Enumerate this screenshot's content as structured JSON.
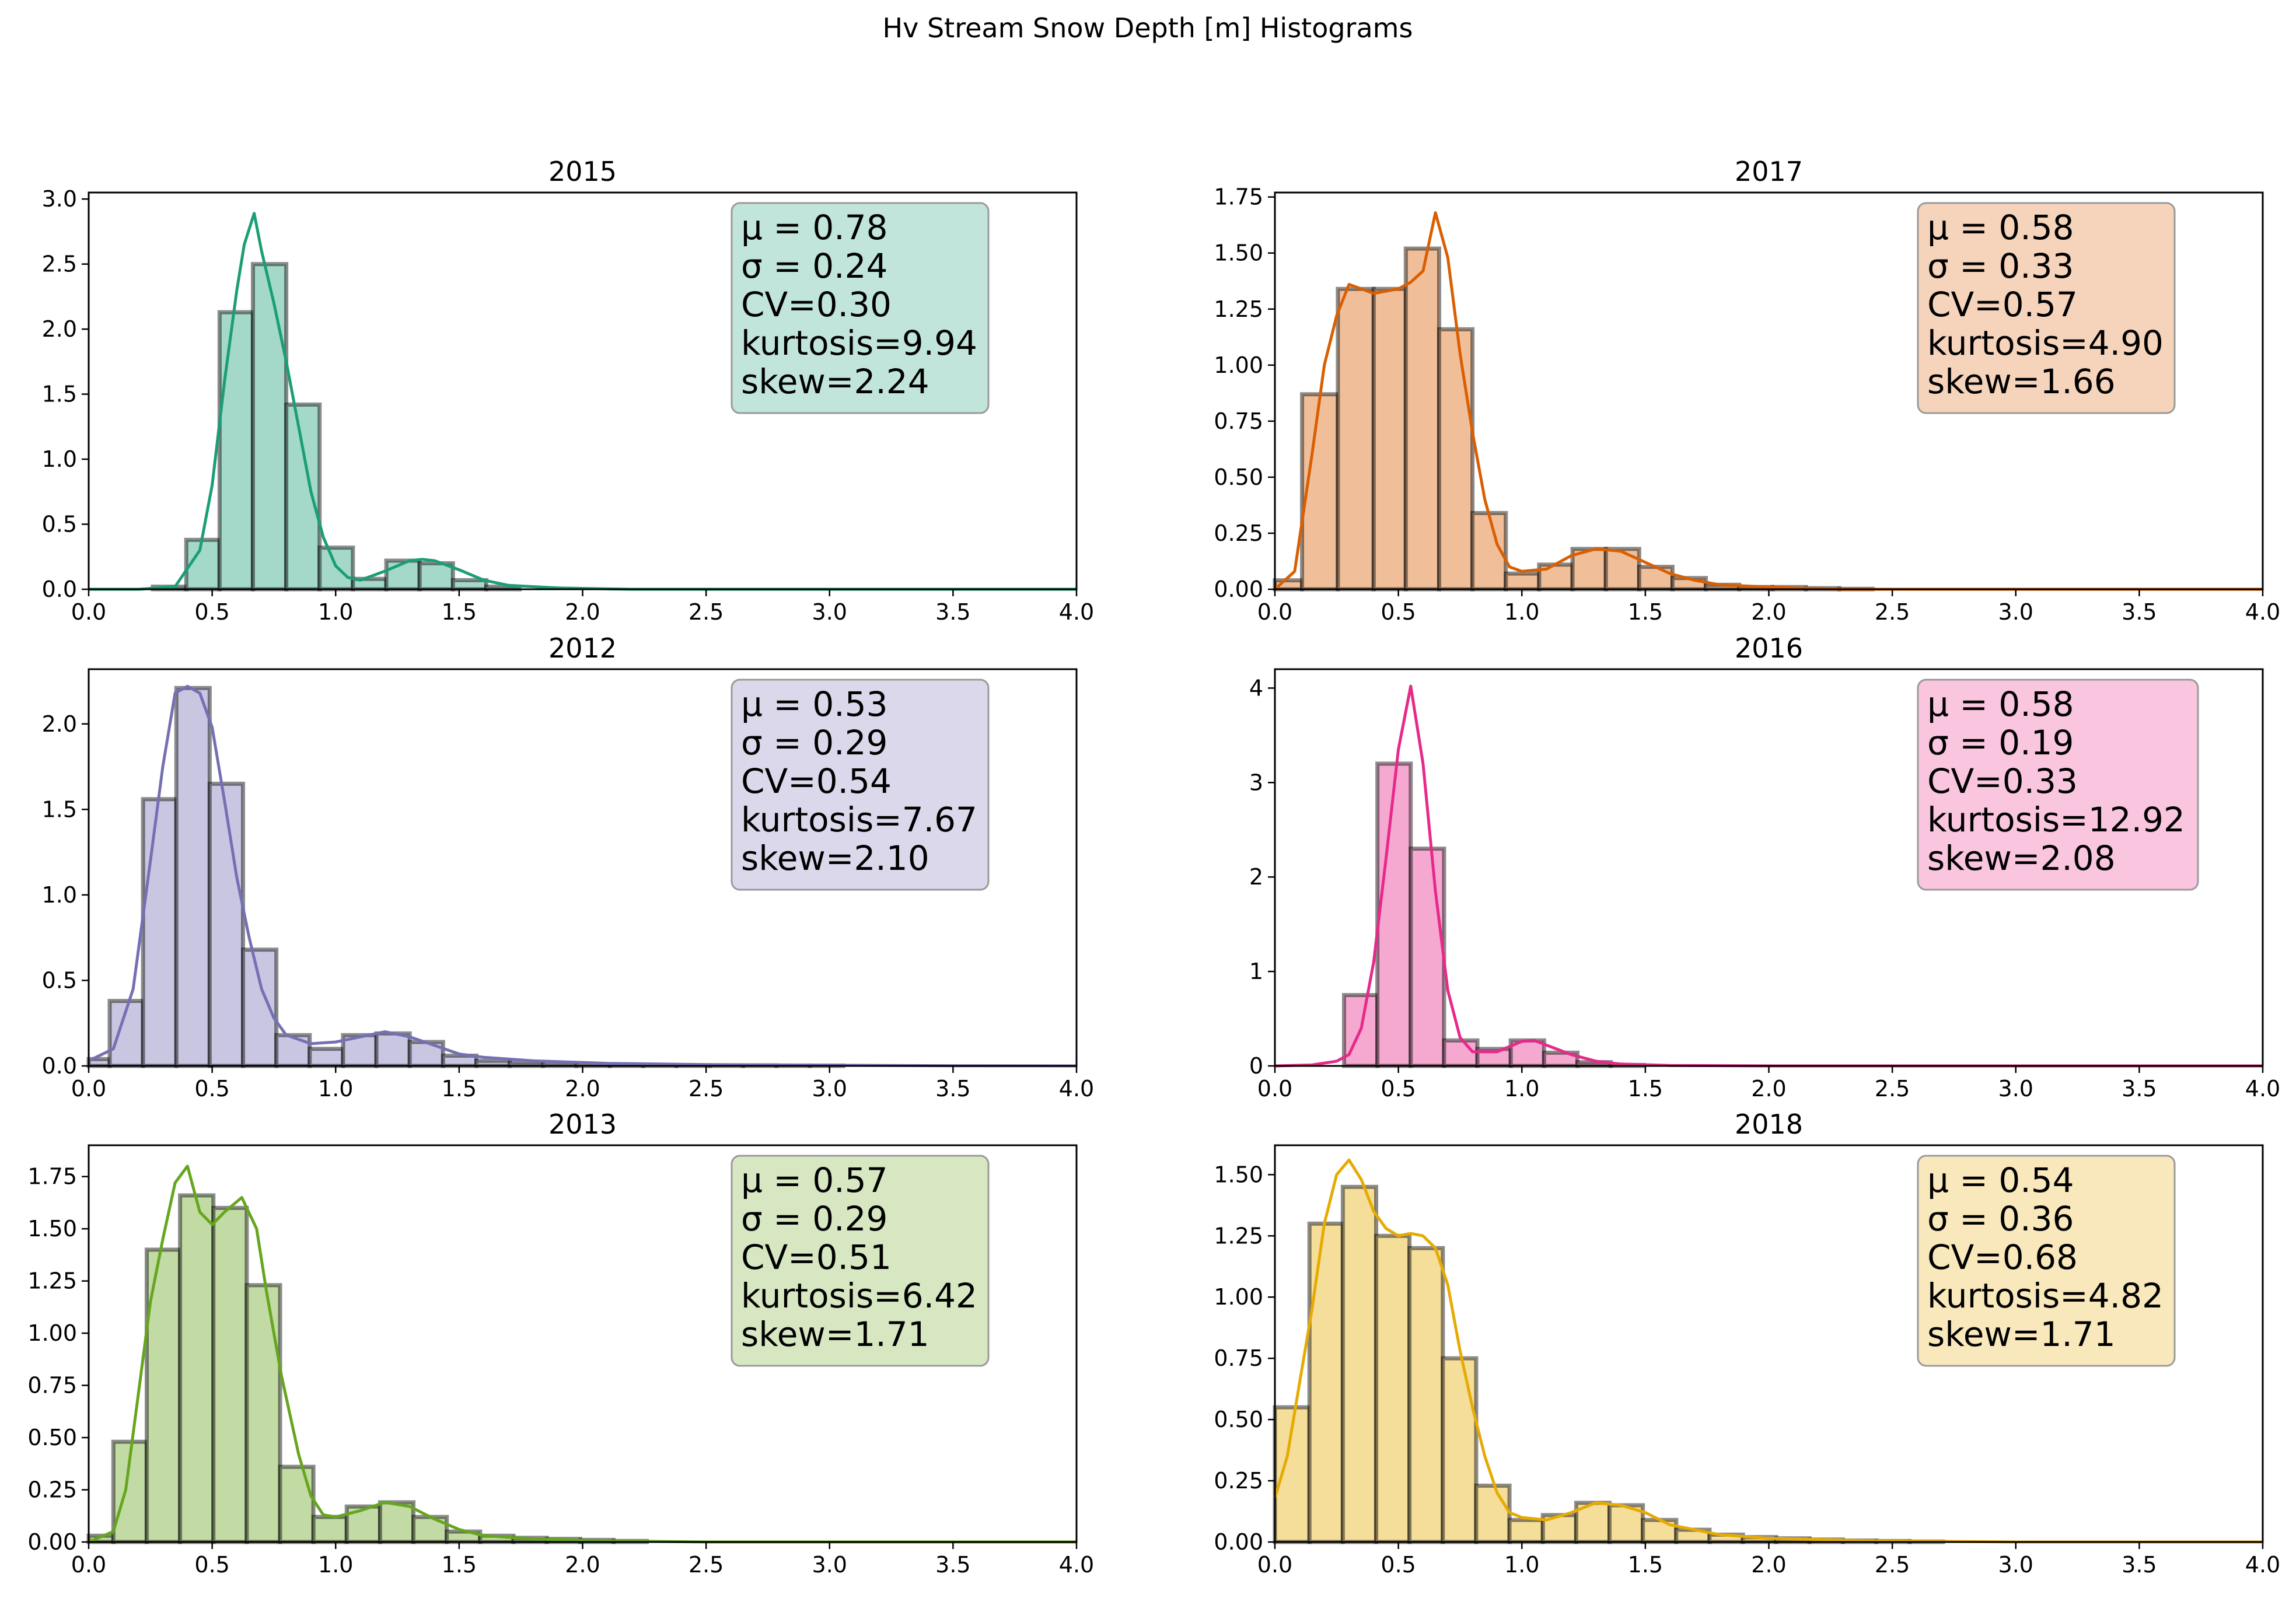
{
  "figure": {
    "suptitle": "Hv Stream Snow Depth [m] Histograms"
  },
  "chart_data": [
    {
      "type": "bar",
      "title": "2015",
      "color": "#1b9e77",
      "xlim": [
        0,
        4
      ],
      "ylim": [
        0,
        3.05
      ],
      "xticks": [
        "0.0",
        "0.5",
        "1.0",
        "1.5",
        "2.0",
        "2.5",
        "3.0",
        "3.5",
        "4.0"
      ],
      "yticks": [
        "0.0",
        "0.5",
        "1.0",
        "1.5",
        "2.0",
        "2.5",
        "3.0"
      ],
      "ytick_values": [
        0,
        0.5,
        1,
        1.5,
        2,
        2.5,
        3
      ],
      "bin_edges": [
        0.26,
        0.395,
        0.53,
        0.665,
        0.8,
        0.935,
        1.07,
        1.205,
        1.34,
        1.475,
        1.61,
        1.745
      ],
      "values": [
        0.02,
        0.38,
        2.13,
        2.5,
        1.42,
        0.32,
        0.08,
        0.22,
        0.2,
        0.07,
        0.02
      ],
      "kde": [
        [
          0,
          0
        ],
        [
          0.2,
          0
        ],
        [
          0.35,
          0.02
        ],
        [
          0.45,
          0.3
        ],
        [
          0.5,
          0.8
        ],
        [
          0.55,
          1.6
        ],
        [
          0.6,
          2.3
        ],
        [
          0.63,
          2.65
        ],
        [
          0.67,
          2.89
        ],
        [
          0.7,
          2.6
        ],
        [
          0.75,
          2.2
        ],
        [
          0.8,
          1.75
        ],
        [
          0.85,
          1.25
        ],
        [
          0.9,
          0.75
        ],
        [
          0.95,
          0.4
        ],
        [
          1.0,
          0.18
        ],
        [
          1.05,
          0.09
        ],
        [
          1.1,
          0.07
        ],
        [
          1.2,
          0.14
        ],
        [
          1.3,
          0.22
        ],
        [
          1.35,
          0.23
        ],
        [
          1.4,
          0.22
        ],
        [
          1.5,
          0.15
        ],
        [
          1.6,
          0.07
        ],
        [
          1.7,
          0.03
        ],
        [
          1.9,
          0.01
        ],
        [
          2.2,
          0
        ],
        [
          4,
          0
        ]
      ],
      "stats": [
        "μ = 0.78",
        "σ = 0.24",
        "CV=0.30",
        "kurtosis=9.94",
        "skew=2.24"
      ]
    },
    {
      "type": "bar",
      "title": "2017",
      "color": "#d95f02",
      "xlim": [
        0,
        4
      ],
      "ylim": [
        0,
        1.77
      ],
      "xticks": [
        "0.0",
        "0.5",
        "1.0",
        "1.5",
        "2.0",
        "2.5",
        "3.0",
        "3.5",
        "4.0"
      ],
      "yticks": [
        "0.00",
        "0.25",
        "0.50",
        "0.75",
        "1.00",
        "1.25",
        "1.50",
        "1.75"
      ],
      "ytick_values": [
        0,
        0.25,
        0.5,
        0.75,
        1,
        1.25,
        1.5,
        1.75
      ],
      "bin_edges": [
        0,
        0.11,
        0.255,
        0.4,
        0.53,
        0.665,
        0.8,
        0.935,
        1.07,
        1.205,
        1.34,
        1.475,
        1.61,
        1.745,
        1.88,
        2.015,
        2.15,
        2.285,
        2.42
      ],
      "values": [
        0.04,
        0.87,
        1.34,
        1.34,
        1.52,
        1.16,
        0.34,
        0.07,
        0.11,
        0.18,
        0.18,
        0.1,
        0.05,
        0.02,
        0.01,
        0.01,
        0.005,
        0.002
      ],
      "kde": [
        [
          0,
          0
        ],
        [
          0.08,
          0.08
        ],
        [
          0.15,
          0.6
        ],
        [
          0.2,
          1.0
        ],
        [
          0.25,
          1.22
        ],
        [
          0.3,
          1.36
        ],
        [
          0.35,
          1.34
        ],
        [
          0.4,
          1.32
        ],
        [
          0.45,
          1.33
        ],
        [
          0.5,
          1.34
        ],
        [
          0.55,
          1.37
        ],
        [
          0.6,
          1.42
        ],
        [
          0.65,
          1.68
        ],
        [
          0.7,
          1.48
        ],
        [
          0.75,
          1.05
        ],
        [
          0.8,
          0.7
        ],
        [
          0.85,
          0.4
        ],
        [
          0.9,
          0.2
        ],
        [
          0.95,
          0.1
        ],
        [
          1.0,
          0.08
        ],
        [
          1.1,
          0.09
        ],
        [
          1.2,
          0.15
        ],
        [
          1.3,
          0.18
        ],
        [
          1.4,
          0.17
        ],
        [
          1.5,
          0.12
        ],
        [
          1.6,
          0.07
        ],
        [
          1.7,
          0.04
        ],
        [
          1.8,
          0.02
        ],
        [
          2.0,
          0.01
        ],
        [
          2.3,
          0
        ],
        [
          4,
          0
        ]
      ],
      "stats": [
        "μ = 0.58",
        "σ = 0.33",
        "CV=0.57",
        "kurtosis=4.90",
        "skew=1.66"
      ]
    },
    {
      "type": "bar",
      "title": "2012",
      "color": "#7570b3",
      "xlim": [
        0,
        4
      ],
      "ylim": [
        0,
        2.32
      ],
      "xticks": [
        "0.0",
        "0.5",
        "1.0",
        "1.5",
        "2.0",
        "2.5",
        "3.0",
        "3.5",
        "4.0"
      ],
      "yticks": [
        "0.0",
        "0.5",
        "1.0",
        "1.5",
        "2.0"
      ],
      "ytick_values": [
        0,
        0.5,
        1,
        1.5,
        2
      ],
      "bin_edges": [
        0,
        0.085,
        0.22,
        0.355,
        0.49,
        0.625,
        0.76,
        0.895,
        1.03,
        1.165,
        1.3,
        1.435,
        1.57,
        1.705,
        1.84,
        1.975,
        2.11,
        2.245,
        2.38,
        2.515,
        2.65,
        2.785,
        2.92,
        3.055
      ],
      "values": [
        0.04,
        0.38,
        1.56,
        2.21,
        1.65,
        0.68,
        0.18,
        0.1,
        0.18,
        0.19,
        0.14,
        0.06,
        0.03,
        0.02,
        0.015,
        0.01,
        0.008,
        0.006,
        0.004,
        0.003,
        0.003,
        0.002,
        0.002
      ],
      "kde": [
        [
          0,
          0.03
        ],
        [
          0.1,
          0.1
        ],
        [
          0.18,
          0.45
        ],
        [
          0.25,
          1.2
        ],
        [
          0.3,
          1.75
        ],
        [
          0.35,
          2.18
        ],
        [
          0.4,
          2.22
        ],
        [
          0.45,
          2.18
        ],
        [
          0.5,
          1.98
        ],
        [
          0.55,
          1.55
        ],
        [
          0.6,
          1.1
        ],
        [
          0.65,
          0.75
        ],
        [
          0.7,
          0.45
        ],
        [
          0.75,
          0.28
        ],
        [
          0.8,
          0.18
        ],
        [
          0.9,
          0.13
        ],
        [
          1.0,
          0.14
        ],
        [
          1.1,
          0.17
        ],
        [
          1.2,
          0.2
        ],
        [
          1.3,
          0.17
        ],
        [
          1.4,
          0.12
        ],
        [
          1.5,
          0.07
        ],
        [
          1.6,
          0.05
        ],
        [
          1.8,
          0.03
        ],
        [
          2.1,
          0.015
        ],
        [
          2.5,
          0.008
        ],
        [
          3.0,
          0.004
        ],
        [
          3.5,
          0.001
        ],
        [
          4,
          0
        ]
      ],
      "stats": [
        "μ = 0.53",
        "σ = 0.29",
        "CV=0.54",
        "kurtosis=7.67",
        "skew=2.10"
      ]
    },
    {
      "type": "bar",
      "title": "2016",
      "color": "#e7298a",
      "xlim": [
        0,
        4
      ],
      "ylim": [
        0,
        4.2
      ],
      "xticks": [
        "0.0",
        "0.5",
        "1.0",
        "1.5",
        "2.0",
        "2.5",
        "3.0",
        "3.5",
        "4.0"
      ],
      "yticks": [
        "0",
        "1",
        "2",
        "3",
        "4"
      ],
      "ytick_values": [
        0,
        1,
        2,
        3,
        4
      ],
      "bin_edges": [
        0.28,
        0.415,
        0.55,
        0.685,
        0.82,
        0.955,
        1.09,
        1.225,
        1.36,
        1.495
      ],
      "values": [
        0.75,
        3.2,
        2.3,
        0.27,
        0.18,
        0.27,
        0.14,
        0.04,
        0.01
      ],
      "kde": [
        [
          0,
          0
        ],
        [
          0.15,
          0.01
        ],
        [
          0.25,
          0.05
        ],
        [
          0.3,
          0.12
        ],
        [
          0.35,
          0.4
        ],
        [
          0.4,
          1.1
        ],
        [
          0.45,
          2.2
        ],
        [
          0.5,
          3.35
        ],
        [
          0.55,
          4.02
        ],
        [
          0.6,
          3.2
        ],
        [
          0.65,
          1.85
        ],
        [
          0.7,
          0.8
        ],
        [
          0.75,
          0.3
        ],
        [
          0.8,
          0.15
        ],
        [
          0.9,
          0.15
        ],
        [
          1.0,
          0.26
        ],
        [
          1.05,
          0.27
        ],
        [
          1.1,
          0.22
        ],
        [
          1.2,
          0.12
        ],
        [
          1.3,
          0.05
        ],
        [
          1.4,
          0.02
        ],
        [
          1.6,
          0.005
        ],
        [
          2.0,
          0
        ],
        [
          4,
          0
        ]
      ],
      "stats": [
        "μ = 0.58",
        "σ = 0.19",
        "CV=0.33",
        "kurtosis=12.92",
        "skew=2.08"
      ]
    },
    {
      "type": "bar",
      "title": "2013",
      "color": "#66a61e",
      "xlim": [
        0,
        4
      ],
      "ylim": [
        0,
        1.9
      ],
      "xticks": [
        "0.0",
        "0.5",
        "1.0",
        "1.5",
        "2.0",
        "2.5",
        "3.0",
        "3.5",
        "4.0"
      ],
      "yticks": [
        "0.00",
        "0.25",
        "0.50",
        "0.75",
        "1.00",
        "1.25",
        "1.50",
        "1.75"
      ],
      "ytick_values": [
        0,
        0.25,
        0.5,
        0.75,
        1,
        1.25,
        1.5,
        1.75
      ],
      "bin_edges": [
        0,
        0.1,
        0.235,
        0.37,
        0.505,
        0.64,
        0.775,
        0.91,
        1.045,
        1.18,
        1.315,
        1.45,
        1.585,
        1.72,
        1.855,
        1.99,
        2.125,
        2.26
      ],
      "values": [
        0.03,
        0.48,
        1.4,
        1.66,
        1.6,
        1.23,
        0.36,
        0.12,
        0.17,
        0.19,
        0.12,
        0.05,
        0.03,
        0.02,
        0.015,
        0.01,
        0.005
      ],
      "kde": [
        [
          0,
          0
        ],
        [
          0.1,
          0.05
        ],
        [
          0.15,
          0.25
        ],
        [
          0.2,
          0.7
        ],
        [
          0.25,
          1.15
        ],
        [
          0.3,
          1.45
        ],
        [
          0.35,
          1.72
        ],
        [
          0.4,
          1.8
        ],
        [
          0.45,
          1.58
        ],
        [
          0.5,
          1.52
        ],
        [
          0.55,
          1.58
        ],
        [
          0.62,
          1.65
        ],
        [
          0.68,
          1.5
        ],
        [
          0.72,
          1.2
        ],
        [
          0.78,
          0.8
        ],
        [
          0.85,
          0.42
        ],
        [
          0.9,
          0.22
        ],
        [
          0.95,
          0.13
        ],
        [
          1.0,
          0.12
        ],
        [
          1.1,
          0.15
        ],
        [
          1.2,
          0.19
        ],
        [
          1.3,
          0.17
        ],
        [
          1.4,
          0.11
        ],
        [
          1.5,
          0.06
        ],
        [
          1.6,
          0.03
        ],
        [
          1.8,
          0.015
        ],
        [
          2.1,
          0.005
        ],
        [
          2.5,
          0
        ],
        [
          4,
          0
        ]
      ],
      "stats": [
        "μ = 0.57",
        "σ = 0.29",
        "CV=0.51",
        "kurtosis=6.42",
        "skew=1.71"
      ]
    },
    {
      "type": "bar",
      "title": "2018",
      "color": "#e6ab02",
      "xlim": [
        0,
        4
      ],
      "ylim": [
        0,
        1.62
      ],
      "xticks": [
        "0.0",
        "0.5",
        "1.0",
        "1.5",
        "2.0",
        "2.5",
        "3.0",
        "3.5",
        "4.0"
      ],
      "yticks": [
        "0.00",
        "0.25",
        "0.50",
        "0.75",
        "1.00",
        "1.25",
        "1.50"
      ],
      "ytick_values": [
        0,
        0.25,
        0.5,
        0.75,
        1,
        1.25,
        1.5
      ],
      "bin_edges": [
        0,
        0.14,
        0.275,
        0.41,
        0.545,
        0.68,
        0.815,
        0.95,
        1.085,
        1.22,
        1.355,
        1.49,
        1.625,
        1.76,
        1.895,
        2.03,
        2.165,
        2.3,
        2.435,
        2.57,
        2.705
      ],
      "values": [
        0.55,
        1.3,
        1.45,
        1.25,
        1.2,
        0.75,
        0.23,
        0.09,
        0.11,
        0.16,
        0.15,
        0.09,
        0.05,
        0.03,
        0.02,
        0.015,
        0.01,
        0.006,
        0.004,
        0.002
      ],
      "kde": [
        [
          0,
          0.18
        ],
        [
          0.05,
          0.35
        ],
        [
          0.1,
          0.65
        ],
        [
          0.15,
          0.95
        ],
        [
          0.2,
          1.3
        ],
        [
          0.25,
          1.5
        ],
        [
          0.3,
          1.56
        ],
        [
          0.35,
          1.48
        ],
        [
          0.4,
          1.35
        ],
        [
          0.45,
          1.28
        ],
        [
          0.5,
          1.25
        ],
        [
          0.55,
          1.26
        ],
        [
          0.6,
          1.25
        ],
        [
          0.65,
          1.2
        ],
        [
          0.7,
          1.05
        ],
        [
          0.75,
          0.78
        ],
        [
          0.8,
          0.55
        ],
        [
          0.85,
          0.35
        ],
        [
          0.9,
          0.2
        ],
        [
          0.95,
          0.12
        ],
        [
          1.0,
          0.1
        ],
        [
          1.1,
          0.09
        ],
        [
          1.2,
          0.12
        ],
        [
          1.3,
          0.16
        ],
        [
          1.4,
          0.15
        ],
        [
          1.5,
          0.12
        ],
        [
          1.6,
          0.07
        ],
        [
          1.8,
          0.03
        ],
        [
          2.0,
          0.015
        ],
        [
          2.4,
          0.005
        ],
        [
          3.0,
          0
        ],
        [
          4,
          0
        ]
      ],
      "stats": [
        "μ = 0.54",
        "σ = 0.36",
        "CV=0.68",
        "kurtosis=4.82",
        "skew=1.71"
      ]
    }
  ]
}
